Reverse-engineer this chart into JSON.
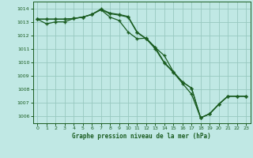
{
  "title": "Graphe pression niveau de la mer (hPa)",
  "bg_color": "#c0e8e4",
  "grid_color": "#98c8c0",
  "line_color": "#1a5c20",
  "ylim": [
    1005.5,
    1014.5
  ],
  "xlim": [
    -0.5,
    23.5
  ],
  "yticks": [
    1006,
    1007,
    1008,
    1009,
    1010,
    1011,
    1012,
    1013,
    1014
  ],
  "xticks": [
    0,
    1,
    2,
    3,
    4,
    5,
    6,
    7,
    8,
    9,
    10,
    11,
    12,
    13,
    14,
    15,
    16,
    17,
    18,
    19,
    20,
    21,
    22,
    23
  ],
  "line1_x": [
    0,
    1,
    2,
    3,
    4,
    5,
    6,
    7,
    8,
    9,
    10,
    11,
    12,
    13,
    14,
    15,
    16,
    17,
    18,
    19,
    20,
    21,
    22,
    23
  ],
  "line1_y": [
    1013.2,
    1013.2,
    1013.2,
    1013.2,
    1013.25,
    1013.35,
    1013.55,
    1013.95,
    1013.65,
    1013.55,
    1013.4,
    1012.25,
    1011.75,
    1011.1,
    1010.0,
    1009.3,
    1008.55,
    1008.1,
    1005.9,
    1006.2,
    1006.9,
    1007.5,
    1007.5,
    1007.5
  ],
  "line2_x": [
    0,
    1,
    2,
    3,
    4,
    5,
    6,
    7,
    8,
    9,
    10,
    11,
    12,
    13,
    14,
    15,
    16,
    17,
    18,
    19,
    20,
    21,
    22,
    23
  ],
  "line2_y": [
    1013.2,
    1013.2,
    1013.2,
    1013.2,
    1013.25,
    1013.35,
    1013.55,
    1013.9,
    1013.6,
    1013.5,
    1013.35,
    1012.2,
    1011.75,
    1011.0,
    1009.95,
    1009.25,
    1008.45,
    1007.65,
    1005.9,
    1006.2,
    1006.9,
    1007.5,
    1007.5,
    1007.5
  ],
  "line3_x": [
    0,
    1,
    2,
    3,
    4,
    5,
    6,
    7,
    8,
    9,
    10,
    11,
    12,
    13,
    14,
    15,
    16,
    17,
    18,
    19,
    20,
    21,
    22,
    23
  ],
  "line3_y": [
    1013.2,
    1012.85,
    1013.0,
    1013.0,
    1013.25,
    1013.35,
    1013.55,
    1013.9,
    1013.35,
    1013.1,
    1012.25,
    1011.75,
    1011.8,
    1011.1,
    1010.5,
    1009.3,
    1008.55,
    1008.1,
    1005.9,
    1006.2,
    1006.9,
    1007.5,
    1007.5,
    1007.5
  ]
}
